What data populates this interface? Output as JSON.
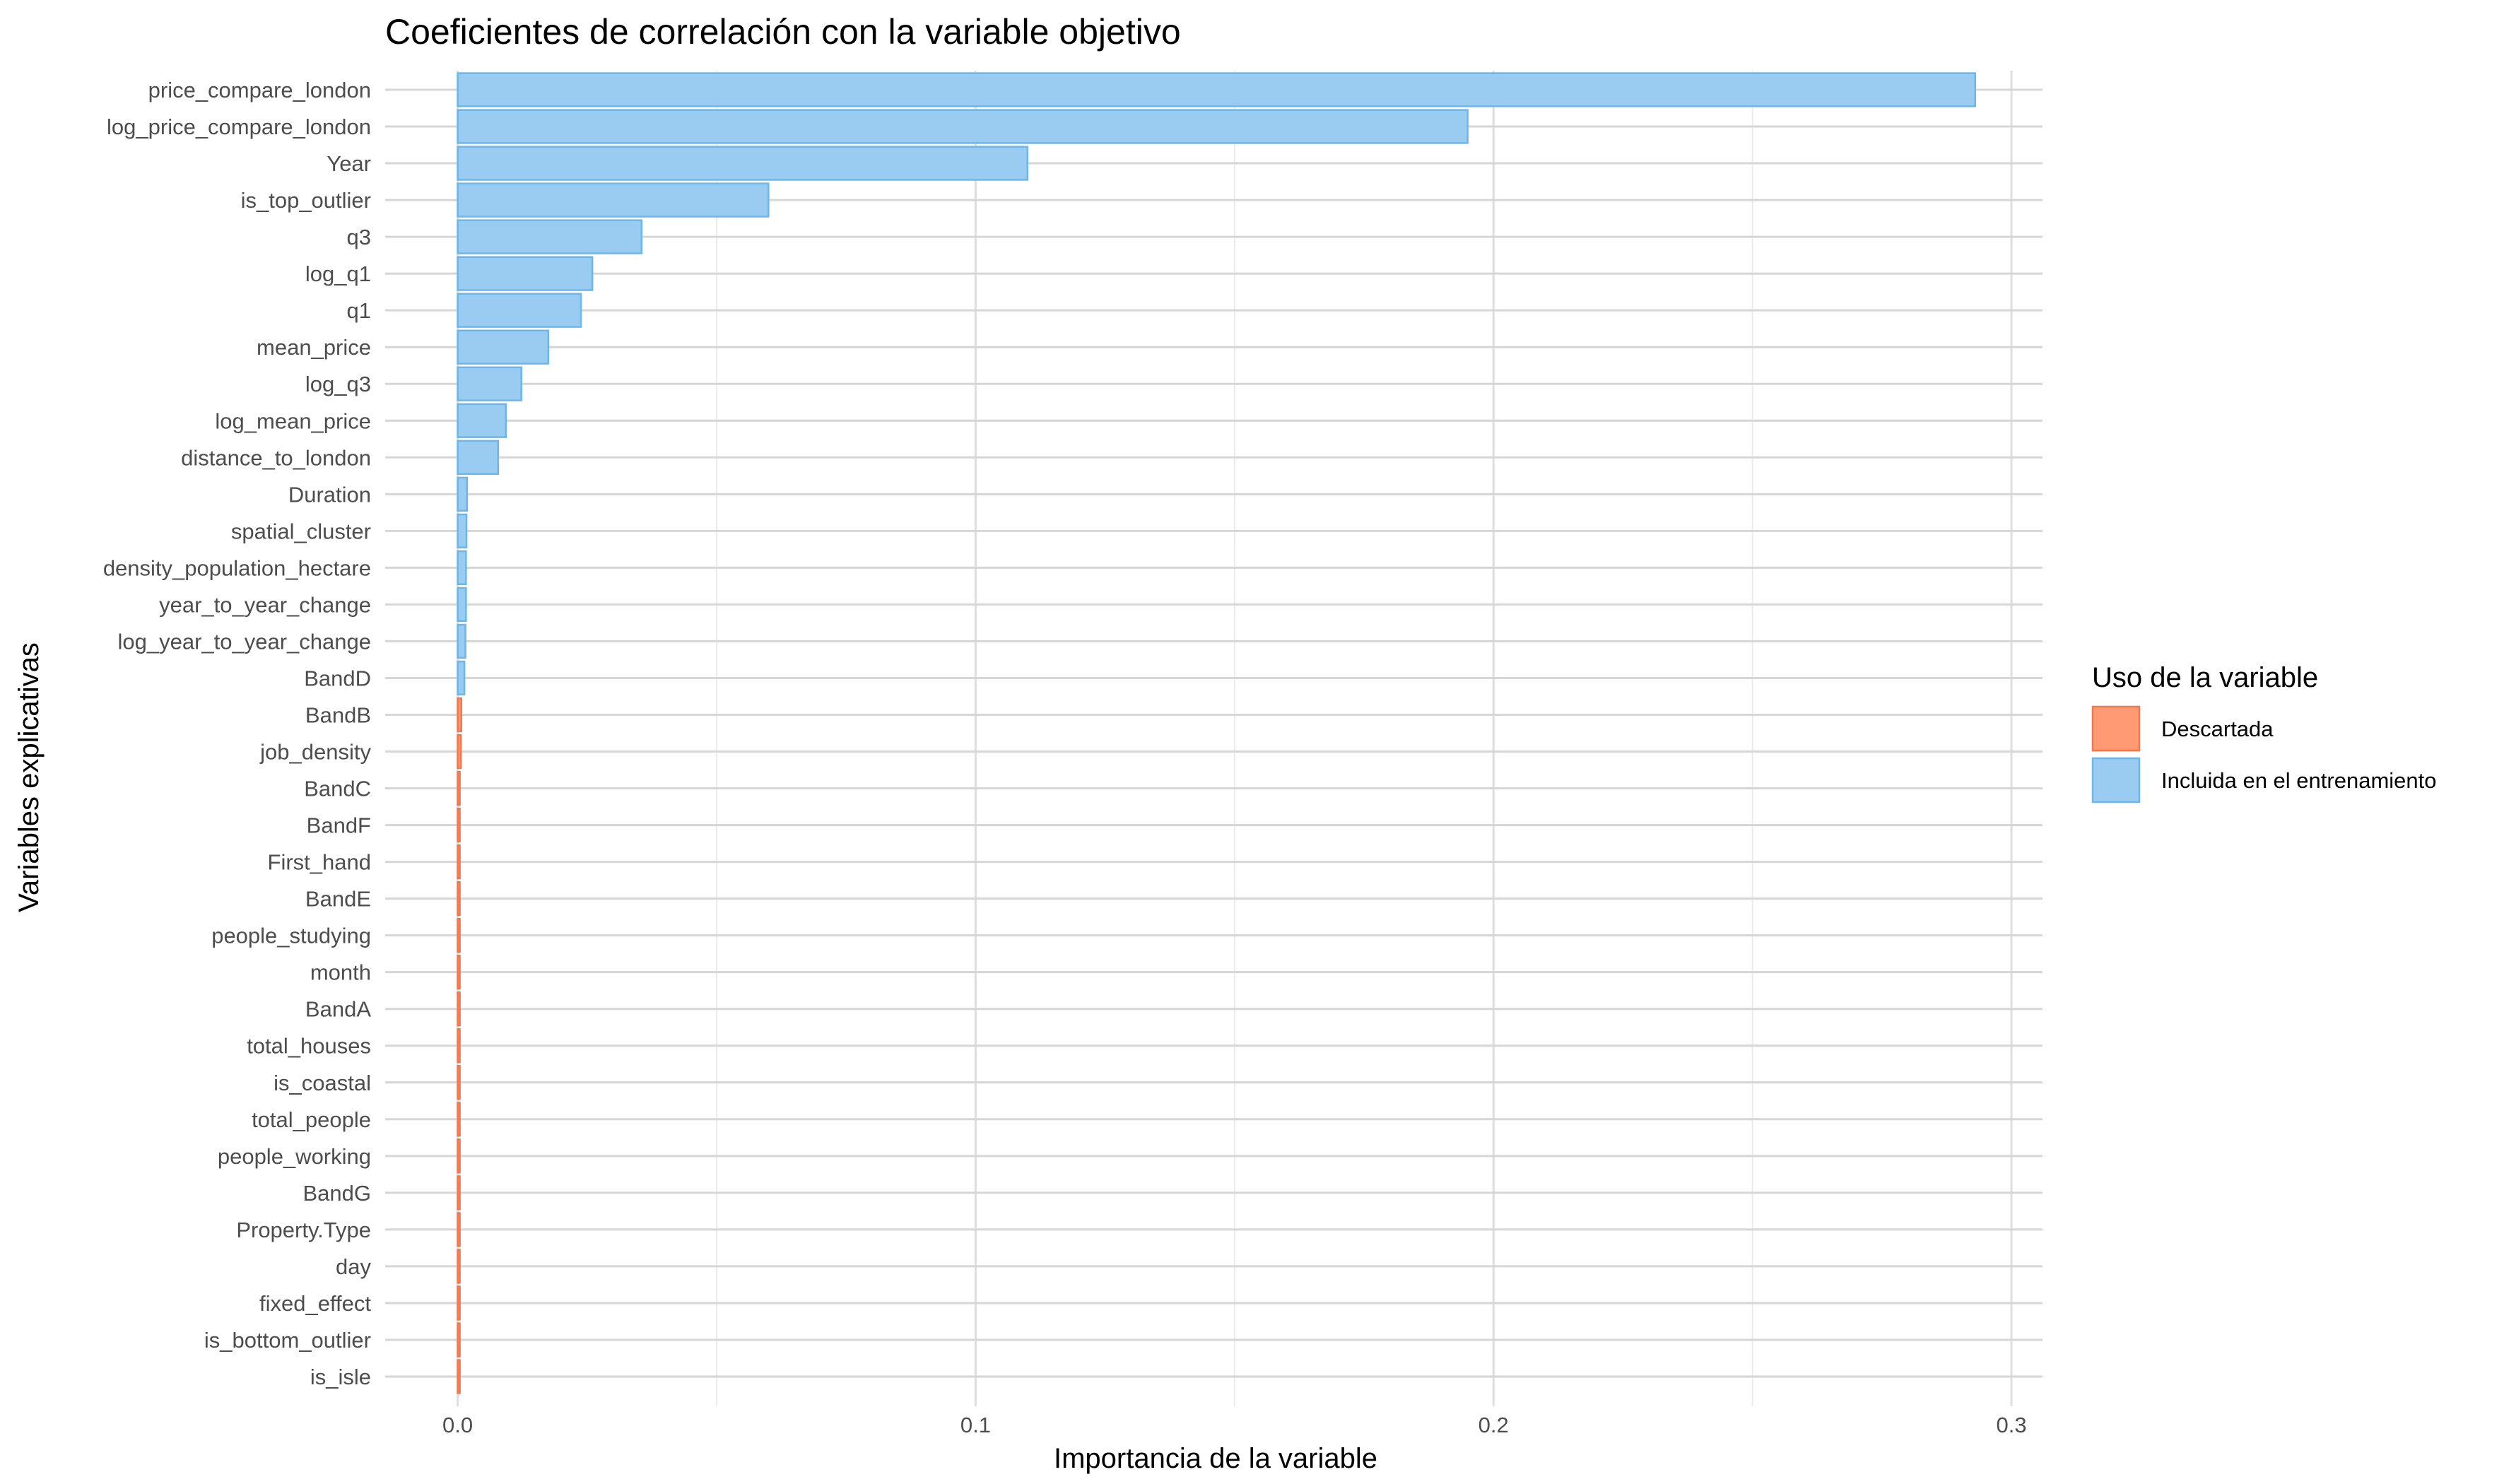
{
  "chart_data": {
    "type": "bar",
    "orientation": "horizontal",
    "title": "Coeficientes de correlación con la variable objetivo",
    "xlabel": "Importancia de la variable",
    "ylabel": "Variables explicativas",
    "xlim": [
      -0.014,
      0.306
    ],
    "xticks": [
      0,
      0.1,
      0.2,
      0.3
    ],
    "xtick_labels": [
      "0.0",
      "0.1",
      "0.2",
      "0.3"
    ],
    "grid": true,
    "legend": {
      "title": "Uso de la variable",
      "position": "right",
      "entries": [
        {
          "key": "descartada",
          "label": "Descartada",
          "fill": "#FF9A74",
          "stroke": "#F4764C"
        },
        {
          "key": "incluida",
          "label": "Incluida en el entrenamiento",
          "fill": "#99CCF0",
          "stroke": "#6BB6EA"
        }
      ]
    },
    "categories": [
      "price_compare_london",
      "log_price_compare_london",
      "Year",
      "is_top_outlier",
      "q3",
      "log_q1",
      "q1",
      "mean_price",
      "log_q3",
      "log_mean_price",
      "distance_to_london",
      "Duration",
      "spatial_cluster",
      "density_population_hectare",
      "year_to_year_change",
      "log_year_to_year_change",
      "BandD",
      "BandB",
      "job_density",
      "BandC",
      "BandF",
      "First_hand",
      "BandE",
      "people_studying",
      "month",
      "BandA",
      "total_houses",
      "is_coastal",
      "total_people",
      "people_working",
      "BandG",
      "Property.Type",
      "day",
      "fixed_effect",
      "is_bottom_outlier",
      "is_isle"
    ],
    "values": [
      0.293,
      0.195,
      0.11,
      0.06,
      0.0355,
      0.026,
      0.0238,
      0.0175,
      0.0123,
      0.0093,
      0.0078,
      0.0018,
      0.0017,
      0.0016,
      0.0016,
      0.0015,
      0.0013,
      0.0007,
      0.0006,
      0.0004,
      0.0003,
      0.0003,
      0.0003,
      0.0002,
      0.0002,
      0.0002,
      0.0002,
      0.0002,
      0.0002,
      0.0002,
      0.0002,
      0.0002,
      0.0001,
      0.0001,
      0.0001,
      0.0001
    ],
    "groups": [
      "incluida",
      "incluida",
      "incluida",
      "incluida",
      "incluida",
      "incluida",
      "incluida",
      "incluida",
      "incluida",
      "incluida",
      "incluida",
      "incluida",
      "incluida",
      "incluida",
      "incluida",
      "incluida",
      "incluida",
      "descartada",
      "descartada",
      "descartada",
      "descartada",
      "descartada",
      "descartada",
      "descartada",
      "descartada",
      "descartada",
      "descartada",
      "descartada",
      "descartada",
      "descartada",
      "descartada",
      "descartada",
      "descartada",
      "descartada",
      "descartada",
      "descartada"
    ]
  }
}
